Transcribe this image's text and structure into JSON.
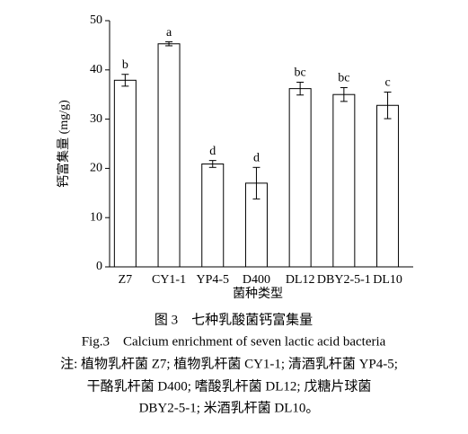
{
  "chart_data": {
    "type": "bar",
    "y_label": "钙富集量 (mg/g)",
    "x_label": "菌种类型",
    "categories": [
      "Z7",
      "CY1-1",
      "YP4-5",
      "D400",
      "DL12",
      "DBY2-5-1",
      "DL10"
    ],
    "values": [
      37.9,
      45.3,
      20.9,
      17.0,
      36.2,
      35.0,
      32.8
    ],
    "errors": [
      1.2,
      0.4,
      0.7,
      3.2,
      1.3,
      1.4,
      2.7
    ],
    "significance_labels": [
      "b",
      "a",
      "d",
      "d",
      "bc",
      "bc",
      "c"
    ],
    "color": "#ffffff",
    "ylim": [
      0,
      50
    ],
    "yticks": [
      0,
      10,
      20,
      30,
      40,
      50
    ]
  },
  "caption": {
    "title_cn": "图 3　七种乳酸菌钙富集量",
    "title_en": "Fig.3　Calcium enrichment of seven lactic acid bacteria",
    "notes": [
      "注: 植物乳杆菌 Z7; 植物乳杆菌 CY1-1; 清酒乳杆菌 YP4-5;",
      "干酪乳杆菌 D400; 嗜酸乳杆菌 DL12; 戊糖片球菌",
      "DBY2-5-1; 米酒乳杆菌 DL10。"
    ]
  }
}
